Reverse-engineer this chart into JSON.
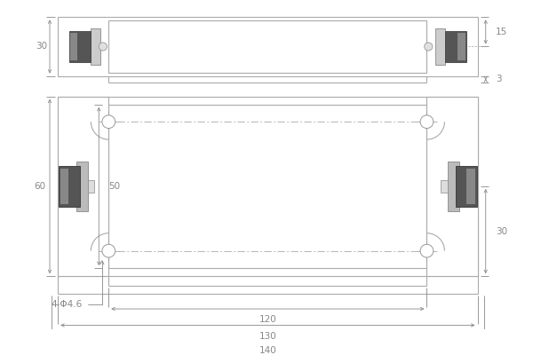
{
  "line_color": "#aaaaaa",
  "dim_color": "#888888",
  "dark_fill": "#555555",
  "mid_fill": "#888888",
  "light_fill": "#cccccc",
  "white": "#ffffff",
  "top_view": {
    "dim_30": "30",
    "dim_15": "15",
    "dim_3": "3"
  },
  "front_view": {
    "dim_60": "60",
    "dim_50": "50",
    "dim_30": "30",
    "dim_120": "120",
    "dim_130": "130",
    "dim_140": "140",
    "dim_hole": "4-Φ4.6"
  },
  "font_size": 7.5
}
